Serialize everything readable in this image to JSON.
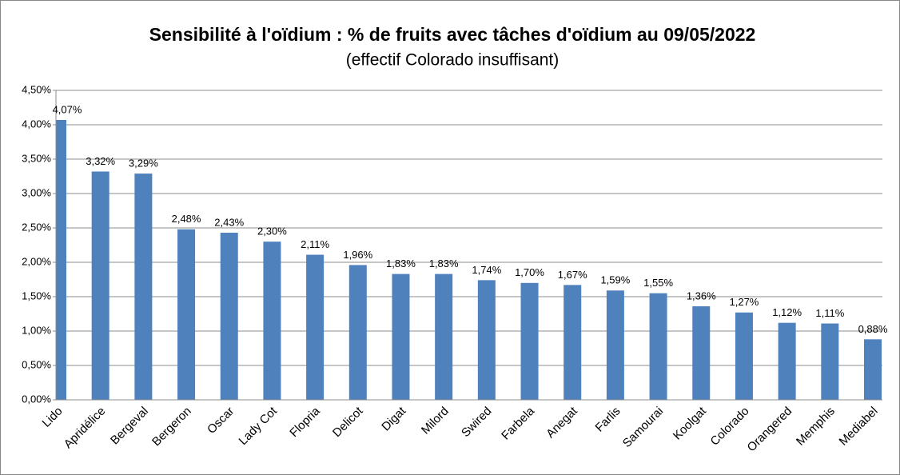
{
  "chart_data": {
    "type": "bar",
    "title": "Sensibilité à l'oïdium : % de fruits avec tâches d'oïdium au 09/05/2022",
    "subtitle": "(effectif Colorado insuffisant)",
    "categories": [
      "Lido",
      "Apridélice",
      "Bergeval",
      "Bergeron",
      "Oscar",
      "Lady Cot",
      "Flopria",
      "Delicot",
      "Digat",
      "Milord",
      "Swired",
      "Farbela",
      "Anegat",
      "Farlis",
      "Samourai",
      "Koolgat",
      "Colorado",
      "Orangered",
      "Memphis",
      "Mediabel"
    ],
    "values": [
      4.07,
      3.32,
      3.29,
      2.48,
      2.43,
      2.3,
      2.11,
      1.96,
      1.83,
      1.83,
      1.74,
      1.7,
      1.67,
      1.59,
      1.55,
      1.36,
      1.27,
      1.12,
      1.11,
      0.88
    ],
    "value_labels": [
      "4,07%",
      "3,32%",
      "3,29%",
      "2,48%",
      "2,43%",
      "2,30%",
      "2,11%",
      "1,96%",
      "1,83%",
      "1,83%",
      "1,74%",
      "1,70%",
      "1,67%",
      "1,59%",
      "1,55%",
      "1,36%",
      "1,27%",
      "1,12%",
      "1,11%",
      "0,88%"
    ],
    "color": "#4f81bd",
    "ylim": [
      0,
      4.5
    ],
    "yticks": [
      {
        "value": 0,
        "label": "0,00%"
      },
      {
        "value": 0.5,
        "label": "0,50%"
      },
      {
        "value": 1,
        "label": "1,00%"
      },
      {
        "value": 1.5,
        "label": "1,50%"
      },
      {
        "value": 2,
        "label": "2,00%"
      },
      {
        "value": 2.5,
        "label": "2,50%"
      },
      {
        "value": 3,
        "label": "3,00%"
      },
      {
        "value": 3.5,
        "label": "3,50%"
      },
      {
        "value": 4,
        "label": "4,00%"
      },
      {
        "value": 4.5,
        "label": "4,50%"
      }
    ],
    "grid": true
  }
}
